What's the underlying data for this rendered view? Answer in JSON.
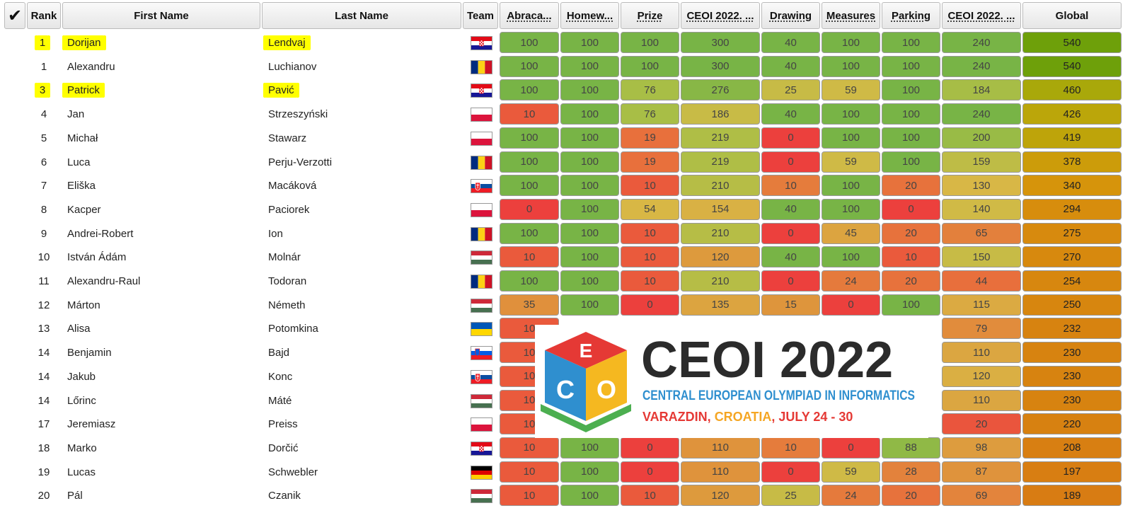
{
  "headers": {
    "check": "✔",
    "rank": "Rank",
    "first_name": "First Name",
    "last_name": "Last Name",
    "team": "Team",
    "tasks": [
      "Abraca...",
      "Homew...",
      "Prize",
      "CEOI 2022. ...",
      "Drawing",
      "Measures",
      "Parking",
      "CEOI 2022. ..."
    ],
    "global": "Global"
  },
  "rows": [
    {
      "rank": "1",
      "first": "Dorijan",
      "last": "Lendvaj",
      "flag": "croatia",
      "highlight": true,
      "scores": [
        100,
        100,
        100,
        300,
        40,
        100,
        100,
        240
      ],
      "global": 540
    },
    {
      "rank": "1",
      "first": "Alexandru",
      "last": "Luchianov",
      "flag": "romania",
      "highlight": false,
      "scores": [
        100,
        100,
        100,
        300,
        40,
        100,
        100,
        240
      ],
      "global": 540
    },
    {
      "rank": "3",
      "first": "Patrick",
      "last": "Pavić",
      "flag": "croatia",
      "highlight": true,
      "scores": [
        100,
        100,
        76,
        276,
        25,
        59,
        100,
        184
      ],
      "global": 460
    },
    {
      "rank": "4",
      "first": "Jan",
      "last": "Strzeszyński",
      "flag": "poland",
      "highlight": false,
      "scores": [
        10,
        100,
        76,
        186,
        40,
        100,
        100,
        240
      ],
      "global": 426
    },
    {
      "rank": "5",
      "first": "Michał",
      "last": "Stawarz",
      "flag": "poland",
      "highlight": false,
      "scores": [
        100,
        100,
        19,
        219,
        0,
        100,
        100,
        200
      ],
      "global": 419
    },
    {
      "rank": "6",
      "first": "Luca",
      "last": "Perju-Verzotti",
      "flag": "romania",
      "highlight": false,
      "scores": [
        100,
        100,
        19,
        219,
        0,
        59,
        100,
        159
      ],
      "global": 378
    },
    {
      "rank": "7",
      "first": "Eliška",
      "last": "Macáková",
      "flag": "slovakia",
      "highlight": false,
      "scores": [
        100,
        100,
        10,
        210,
        10,
        100,
        20,
        130
      ],
      "global": 340
    },
    {
      "rank": "8",
      "first": "Kacper",
      "last": "Paciorek",
      "flag": "poland",
      "highlight": false,
      "scores": [
        0,
        100,
        54,
        154,
        40,
        100,
        0,
        140
      ],
      "global": 294
    },
    {
      "rank": "9",
      "first": "Andrei-Robert",
      "last": "Ion",
      "flag": "romania",
      "highlight": false,
      "scores": [
        100,
        100,
        10,
        210,
        0,
        45,
        20,
        65
      ],
      "global": 275
    },
    {
      "rank": "10",
      "first": "István Ádám",
      "last": "Molnár",
      "flag": "hungary",
      "highlight": false,
      "scores": [
        10,
        100,
        10,
        120,
        40,
        100,
        10,
        150
      ],
      "global": 270
    },
    {
      "rank": "11",
      "first": "Alexandru-Raul",
      "last": "Todoran",
      "flag": "romania",
      "highlight": false,
      "scores": [
        100,
        100,
        10,
        210,
        0,
        24,
        20,
        44
      ],
      "global": 254
    },
    {
      "rank": "12",
      "first": "Márton",
      "last": "Németh",
      "flag": "hungary",
      "highlight": false,
      "scores": [
        35,
        100,
        0,
        135,
        15,
        0,
        100,
        115
      ],
      "global": 250
    },
    {
      "rank": "13",
      "first": "Alisa",
      "last": "Potomkina",
      "flag": "ukraine",
      "highlight": false,
      "scores": [
        10,
        null,
        null,
        null,
        null,
        null,
        null,
        79
      ],
      "global": 232
    },
    {
      "rank": "14",
      "first": "Benjamin",
      "last": "Bajd",
      "flag": "slovenia",
      "highlight": false,
      "scores": [
        10,
        null,
        null,
        null,
        null,
        null,
        null,
        110
      ],
      "global": 230
    },
    {
      "rank": "14",
      "first": "Jakub",
      "last": "Konc",
      "flag": "slovakia",
      "highlight": false,
      "scores": [
        10,
        null,
        null,
        null,
        null,
        null,
        null,
        120
      ],
      "global": 230
    },
    {
      "rank": "14",
      "first": "Lőrinc",
      "last": "Máté",
      "flag": "hungary",
      "highlight": false,
      "scores": [
        10,
        null,
        null,
        null,
        null,
        null,
        null,
        110
      ],
      "global": 230
    },
    {
      "rank": "17",
      "first": "Jeremiasz",
      "last": "Preiss",
      "flag": "poland",
      "highlight": false,
      "scores": [
        10,
        null,
        null,
        null,
        null,
        null,
        null,
        20
      ],
      "global": 220
    },
    {
      "rank": "18",
      "first": "Marko",
      "last": "Dorčić",
      "flag": "croatia",
      "highlight": false,
      "scores": [
        10,
        100,
        0,
        110,
        10,
        0,
        88,
        98
      ],
      "global": 208
    },
    {
      "rank": "19",
      "first": "Lucas",
      "last": "Schwebler",
      "flag": "germany",
      "highlight": false,
      "scores": [
        10,
        100,
        0,
        110,
        0,
        59,
        28,
        87
      ],
      "global": 197
    },
    {
      "rank": "20",
      "first": "Pál",
      "last": "Czanik",
      "flag": "hungary",
      "highlight": false,
      "scores": [
        10,
        100,
        10,
        120,
        25,
        24,
        20,
        69
      ],
      "global": 189
    }
  ],
  "max_scores": [
    100,
    100,
    100,
    300,
    40,
    100,
    100,
    240
  ],
  "global_max": 540,
  "logo": {
    "title": "CEOI 2022",
    "subtitle": "CENTRAL EUROPEAN OLYMPIAD IN INFORMATICS",
    "city": "VARAZDIN",
    "comma1": ", ",
    "country": "CROATIA",
    "dates": ", JULY 24 - 30",
    "cube_letters": [
      "E",
      "C",
      "O"
    ]
  },
  "colors": {
    "title": "#2b2b2b",
    "subtitle": "#2f8fcf",
    "city": "#e53935",
    "country": "#f5a623",
    "dates": "#e53935",
    "cube_red": "#e53935",
    "cube_blue": "#2f8fcf",
    "cube_yellow": "#f5b820",
    "cube_green": "#4caf50"
  }
}
